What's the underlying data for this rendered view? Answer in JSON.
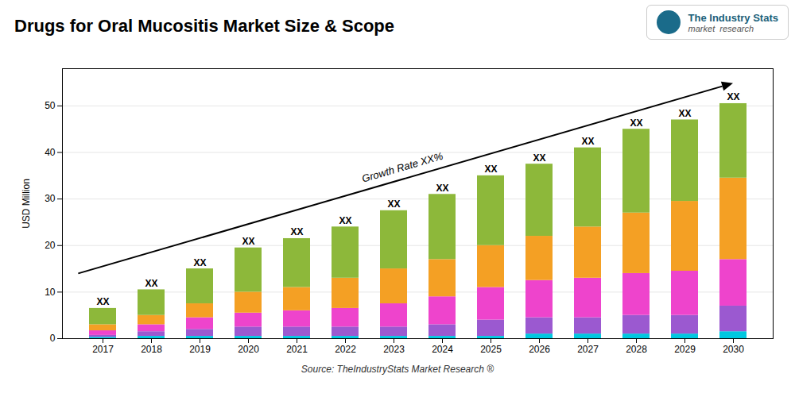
{
  "chart_data": {
    "type": "bar",
    "stacked": true,
    "title": "Drugs for Oral Mucositis Market Size & Scope",
    "ylabel": "USD Million",
    "source": "Source: TheIndustryStats Market Research ®",
    "categories": [
      "2017",
      "2018",
      "2019",
      "2020",
      "2021",
      "2022",
      "2023",
      "2024",
      "2025",
      "2026",
      "2027",
      "2028",
      "2029",
      "2030"
    ],
    "series": [
      {
        "color": "#00c8e0",
        "values": [
          0.3,
          0.5,
          0.5,
          0.5,
          0.5,
          0.5,
          0.5,
          0.5,
          0.5,
          1.0,
          1.0,
          1.0,
          1.0,
          1.5
        ]
      },
      {
        "color": "#9b59d0",
        "values": [
          0.4,
          1.0,
          1.5,
          2.0,
          2.0,
          2.0,
          2.0,
          2.5,
          3.5,
          3.5,
          3.5,
          4.0,
          4.0,
          5.5
        ]
      },
      {
        "color": "#ee44cc",
        "values": [
          1.0,
          1.5,
          2.5,
          3.0,
          3.5,
          4.0,
          5.0,
          6.0,
          7.0,
          8.0,
          8.5,
          9.0,
          9.5,
          10.0
        ]
      },
      {
        "color": "#f4a024",
        "values": [
          1.3,
          2.0,
          3.0,
          4.5,
          5.0,
          6.5,
          7.5,
          8.0,
          9.0,
          9.5,
          11.0,
          13.0,
          15.0,
          17.5
        ]
      },
      {
        "color": "#8db83a",
        "values": [
          3.5,
          5.5,
          7.5,
          9.5,
          10.5,
          11.0,
          12.5,
          14.0,
          15.0,
          15.5,
          17.0,
          18.0,
          17.5,
          16.0
        ]
      }
    ],
    "totals": [
      6.5,
      10.5,
      15.0,
      19.5,
      21.5,
      24.0,
      27.5,
      31.0,
      35.0,
      37.5,
      41.0,
      45.0,
      47.0,
      50.5
    ],
    "bar_label": "XX",
    "growth_label": "Growth Rate XX%",
    "logo_title": "The Industry Stats",
    "logo_subtitle": "market  research",
    "ylim": [
      0,
      58
    ],
    "yticks": [
      0,
      10,
      20,
      30,
      40,
      50
    ],
    "grid": true
  }
}
